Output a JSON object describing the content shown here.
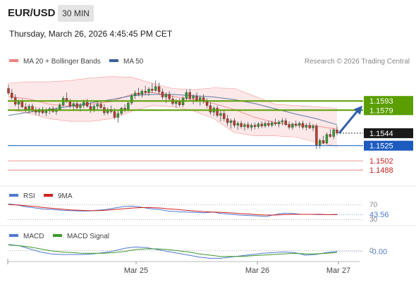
{
  "header": {
    "symbol": "EUR/USD",
    "timeframe": "30 MIN",
    "datetime": "Thursday, March 26, 2026 4:45:45 PM CET"
  },
  "legend": {
    "bollinger": "MA 20 + Bollinger Bands",
    "ma50": "MA 50",
    "credit": "Research © 2026 Trading Central"
  },
  "rsi_legend": {
    "rsi": "RSI",
    "ma": "9MA"
  },
  "macd_legend": {
    "macd": "MACD",
    "signal": "MACD Signal"
  },
  "colors": {
    "up": "#2e9e2e",
    "down": "#c0392b",
    "bollinger": "#f08080",
    "ma50": "#3a5f9a",
    "resistance": "#5a9e00",
    "support": "#e05050",
    "pivot": "#1e5bbf",
    "arrow": "#2e5fa8",
    "rsi": "#4f78d0",
    "rsi_ma": "#d02020",
    "macd": "#4f78d0",
    "macd_signal": "#3c9a2a"
  },
  "chart_data": [
    {
      "type": "candlestick",
      "title": "EUR/USD",
      "ylim": [
        1.147,
        1.1635
      ],
      "x_ticks": [
        "Mar 25",
        "Mar 26",
        "Mar 27"
      ],
      "candles": [
        [
          1.1612,
          1.1618,
          1.1602,
          1.1605
        ],
        [
          1.1605,
          1.1611,
          1.1595,
          1.1598
        ],
        [
          1.1598,
          1.1603,
          1.1585,
          1.1588
        ],
        [
          1.1588,
          1.1595,
          1.158,
          1.1592
        ],
        [
          1.1592,
          1.1596,
          1.1582,
          1.1584
        ],
        [
          1.1584,
          1.159,
          1.1576,
          1.158
        ],
        [
          1.158,
          1.1588,
          1.1574,
          1.1585
        ],
        [
          1.1585,
          1.1589,
          1.1576,
          1.1579
        ],
        [
          1.1579,
          1.1584,
          1.1572,
          1.1576
        ],
        [
          1.1576,
          1.1583,
          1.1571,
          1.158
        ],
        [
          1.158,
          1.1584,
          1.1573,
          1.1575
        ],
        [
          1.1575,
          1.1582,
          1.157,
          1.1578
        ],
        [
          1.1578,
          1.1584,
          1.1573,
          1.1581
        ],
        [
          1.1581,
          1.1585,
          1.1575,
          1.1577
        ],
        [
          1.1577,
          1.1583,
          1.1572,
          1.158
        ],
        [
          1.158,
          1.159,
          1.1578,
          1.1587
        ],
        [
          1.1587,
          1.16,
          1.1584,
          1.1597
        ],
        [
          1.1597,
          1.1606,
          1.159,
          1.1592
        ],
        [
          1.1592,
          1.1596,
          1.1582,
          1.1585
        ],
        [
          1.1585,
          1.1592,
          1.1578,
          1.1589
        ],
        [
          1.1589,
          1.1593,
          1.158,
          1.1583
        ],
        [
          1.1583,
          1.159,
          1.1577,
          1.1586
        ],
        [
          1.1586,
          1.1595,
          1.1582,
          1.1591
        ],
        [
          1.1591,
          1.1596,
          1.1583,
          1.1585
        ],
        [
          1.1585,
          1.159,
          1.1575,
          1.1579
        ],
        [
          1.1579,
          1.1588,
          1.1576,
          1.1585
        ],
        [
          1.1585,
          1.1592,
          1.158,
          1.1588
        ],
        [
          1.1588,
          1.1594,
          1.1581,
          1.1583
        ],
        [
          1.1583,
          1.1588,
          1.1571,
          1.1575
        ],
        [
          1.1575,
          1.1583,
          1.1572,
          1.158
        ],
        [
          1.158,
          1.1586,
          1.1574,
          1.1577
        ],
        [
          1.1577,
          1.1582,
          1.1565,
          1.1568
        ],
        [
          1.1568,
          1.1578,
          1.156,
          1.1574
        ],
        [
          1.1574,
          1.1584,
          1.1571,
          1.1582
        ],
        [
          1.1582,
          1.1588,
          1.1576,
          1.1579
        ],
        [
          1.1579,
          1.1592,
          1.1577,
          1.159
        ],
        [
          1.159,
          1.1604,
          1.1587,
          1.1601
        ],
        [
          1.1601,
          1.1609,
          1.1596,
          1.1605
        ],
        [
          1.1605,
          1.1613,
          1.16,
          1.1603
        ],
        [
          1.1603,
          1.1611,
          1.1598,
          1.1608
        ],
        [
          1.1608,
          1.1616,
          1.1602,
          1.1606
        ],
        [
          1.1606,
          1.1614,
          1.1601,
          1.1611
        ],
        [
          1.1611,
          1.162,
          1.1605,
          1.1609
        ],
        [
          1.1609,
          1.1624,
          1.1607,
          1.1615
        ],
        [
          1.1615,
          1.1621,
          1.1603,
          1.1607
        ],
        [
          1.1607,
          1.1612,
          1.1595,
          1.1599
        ],
        [
          1.1599,
          1.1606,
          1.159,
          1.1603
        ],
        [
          1.1603,
          1.1608,
          1.1594,
          1.1596
        ],
        [
          1.1596,
          1.1601,
          1.1586,
          1.1589
        ],
        [
          1.1589,
          1.1596,
          1.1583,
          1.1592
        ],
        [
          1.1592,
          1.1597,
          1.1584,
          1.1587
        ],
        [
          1.1587,
          1.16,
          1.1584,
          1.1597
        ],
        [
          1.1597,
          1.161,
          1.1594,
          1.1606
        ],
        [
          1.1606,
          1.1611,
          1.1594,
          1.1597
        ],
        [
          1.1597,
          1.1603,
          1.1588,
          1.16
        ],
        [
          1.16,
          1.1606,
          1.1591,
          1.1594
        ],
        [
          1.1594,
          1.1601,
          1.1586,
          1.1598
        ],
        [
          1.1598,
          1.1603,
          1.1589,
          1.1592
        ],
        [
          1.1592,
          1.1597,
          1.1582,
          1.1586
        ],
        [
          1.1586,
          1.1591,
          1.1572,
          1.1576
        ],
        [
          1.1576,
          1.1585,
          1.157,
          1.1582
        ],
        [
          1.1582,
          1.1586,
          1.1568,
          1.1571
        ],
        [
          1.1571,
          1.1578,
          1.1562,
          1.1574
        ],
        [
          1.1574,
          1.1579,
          1.1562,
          1.1566
        ],
        [
          1.1566,
          1.1572,
          1.1555,
          1.156
        ],
        [
          1.156,
          1.1566,
          1.1551,
          1.1563
        ],
        [
          1.1563,
          1.1567,
          1.1552,
          1.1556
        ],
        [
          1.1556,
          1.1562,
          1.1549,
          1.1559
        ],
        [
          1.1559,
          1.1563,
          1.1551,
          1.1554
        ],
        [
          1.1554,
          1.156,
          1.1548,
          1.1557
        ],
        [
          1.1557,
          1.1561,
          1.155,
          1.1553
        ],
        [
          1.1553,
          1.1559,
          1.1548,
          1.1556
        ],
        [
          1.1556,
          1.156,
          1.155,
          1.1554
        ],
        [
          1.1554,
          1.1561,
          1.1551,
          1.1558
        ],
        [
          1.1558,
          1.1562,
          1.1552,
          1.1555
        ],
        [
          1.1555,
          1.1562,
          1.1552,
          1.1559
        ],
        [
          1.1559,
          1.1563,
          1.1553,
          1.1556
        ],
        [
          1.1556,
          1.1563,
          1.1553,
          1.156
        ],
        [
          1.156,
          1.1566,
          1.1555,
          1.1558
        ],
        [
          1.1558,
          1.1564,
          1.1553,
          1.1561
        ],
        [
          1.1561,
          1.1567,
          1.1556,
          1.1563
        ],
        [
          1.1563,
          1.1567,
          1.1555,
          1.1557
        ],
        [
          1.1557,
          1.1562,
          1.155,
          1.1553
        ],
        [
          1.1553,
          1.156,
          1.1549,
          1.1558
        ],
        [
          1.1558,
          1.1563,
          1.1553,
          1.1556
        ],
        [
          1.1556,
          1.1562,
          1.1552,
          1.1559
        ],
        [
          1.1559,
          1.1563,
          1.155,
          1.1553
        ],
        [
          1.1553,
          1.1559,
          1.1548,
          1.1556
        ],
        [
          1.1556,
          1.1561,
          1.155,
          1.1552
        ],
        [
          1.1552,
          1.1558,
          1.1547,
          1.1555
        ],
        [
          1.1555,
          1.1558,
          1.152,
          1.1526
        ],
        [
          1.1526,
          1.1536,
          1.1521,
          1.1533
        ],
        [
          1.1533,
          1.154,
          1.1527,
          1.1529
        ],
        [
          1.1529,
          1.1545,
          1.1527,
          1.1542
        ],
        [
          1.1542,
          1.155,
          1.1537,
          1.1539
        ],
        [
          1.1539,
          1.1552,
          1.1535,
          1.1549
        ],
        [
          1.1549,
          1.1555,
          1.1541,
          1.1544
        ]
      ],
      "bollinger": {
        "upper": [
          1.162,
          1.1622,
          1.1622,
          1.1624,
          1.1628,
          1.163,
          1.1629,
          1.162,
          1.1612,
          1.161,
          1.1613,
          1.1612,
          1.16,
          1.1588,
          1.1586,
          1.1584,
          1.1582
        ],
        "middle": [
          1.16,
          1.1596,
          1.1588,
          1.1585,
          1.1588,
          1.1592,
          1.1603,
          1.1606,
          1.16,
          1.1595,
          1.1589,
          1.158,
          1.1568,
          1.156,
          1.1556,
          1.1555,
          1.155
        ],
        "lower": [
          1.158,
          1.1574,
          1.1566,
          1.1562,
          1.1562,
          1.1566,
          1.1577,
          1.1586,
          1.1584,
          1.1578,
          1.1566,
          1.1545,
          1.154,
          1.154,
          1.1538,
          1.153,
          1.1524
        ]
      },
      "ma50": [
        1.1571,
        1.1576,
        1.158,
        1.1585,
        1.159,
        1.1595,
        1.1601,
        1.1603,
        1.1603,
        1.1601,
        1.1599,
        1.1595,
        1.1589,
        1.1581,
        1.1573,
        1.1566,
        1.1557
      ],
      "projection": {
        "from": 1.1544,
        "to": 1.1586
      },
      "levels": [
        {
          "kind": "resistance",
          "label": "1.1593",
          "value": 1.1593
        },
        {
          "kind": "resistance",
          "label": "1.1579",
          "value": 1.1579
        },
        {
          "kind": "last",
          "label": "1.1544",
          "value": 1.1544
        },
        {
          "kind": "pivot",
          "label": "1.1525",
          "value": 1.1525
        },
        {
          "kind": "support",
          "label": "1.1502",
          "value": 1.1502
        },
        {
          "kind": "support",
          "label": "1.1488",
          "value": 1.1488
        }
      ]
    },
    {
      "type": "line",
      "title": "RSI",
      "ylim": [
        25,
        80
      ],
      "ref_lines": [
        {
          "label": "70",
          "value": 70
        },
        {
          "label": "30",
          "value": 30
        }
      ],
      "current_label": "43.56",
      "current": 43.56,
      "series": [
        {
          "name": "RSI",
          "values": [
            72,
            69,
            64,
            61,
            58,
            57,
            55,
            54,
            53,
            53,
            55,
            57,
            61,
            65,
            66,
            63,
            59,
            57,
            53,
            51,
            50,
            49,
            48,
            50,
            46,
            44,
            42,
            41,
            40,
            38,
            43,
            47,
            46,
            44,
            44,
            43,
            43,
            44
          ]
        },
        {
          "name": "9MA",
          "values": [
            70,
            69,
            67,
            65,
            62,
            60,
            58,
            56,
            55,
            54,
            54,
            55,
            57,
            59,
            61,
            62,
            62,
            61,
            59,
            57,
            55,
            53,
            51,
            50,
            49,
            48,
            46,
            45,
            43,
            42,
            42,
            43,
            44,
            44,
            44,
            44,
            43,
            43
          ]
        }
      ]
    },
    {
      "type": "line",
      "title": "MACD",
      "ylim": [
        -0.0016,
        0.0013
      ],
      "ref_lines": [
        {
          "label": "0",
          "value": 0
        }
      ],
      "current_label": "-0.00",
      "current": -0.0001,
      "series": [
        {
          "name": "MACD",
          "values": [
            0.001,
            0.0008,
            0.0003,
            -0.0002,
            -0.0005,
            -0.0006,
            -0.0006,
            -0.0006,
            -0.0005,
            -0.0003,
            0.0,
            0.0004,
            0.0006,
            0.0005,
            0.0002,
            -0.0001,
            -0.0004,
            -0.0007,
            -0.001,
            -0.0012,
            -0.0012,
            -0.001,
            -0.0008,
            -0.0006,
            -0.0004,
            -0.0003,
            -0.0002,
            -0.0003,
            -0.0007,
            -0.0006,
            -0.0003,
            -0.0001
          ]
        },
        {
          "name": "MACD Signal",
          "values": [
            0.0009,
            0.0008,
            0.0006,
            0.0003,
            0.0,
            -0.0002,
            -0.0003,
            -0.0004,
            -0.0004,
            -0.0004,
            -0.0003,
            -0.0001,
            0.0002,
            0.0003,
            0.0003,
            0.0002,
            0.0,
            -0.0002,
            -0.0005,
            -0.0007,
            -0.0009,
            -0.0009,
            -0.0009,
            -0.0008,
            -0.0007,
            -0.0006,
            -0.0005,
            -0.0004,
            -0.0005,
            -0.0005,
            -0.0004,
            -0.0003
          ]
        }
      ]
    }
  ]
}
